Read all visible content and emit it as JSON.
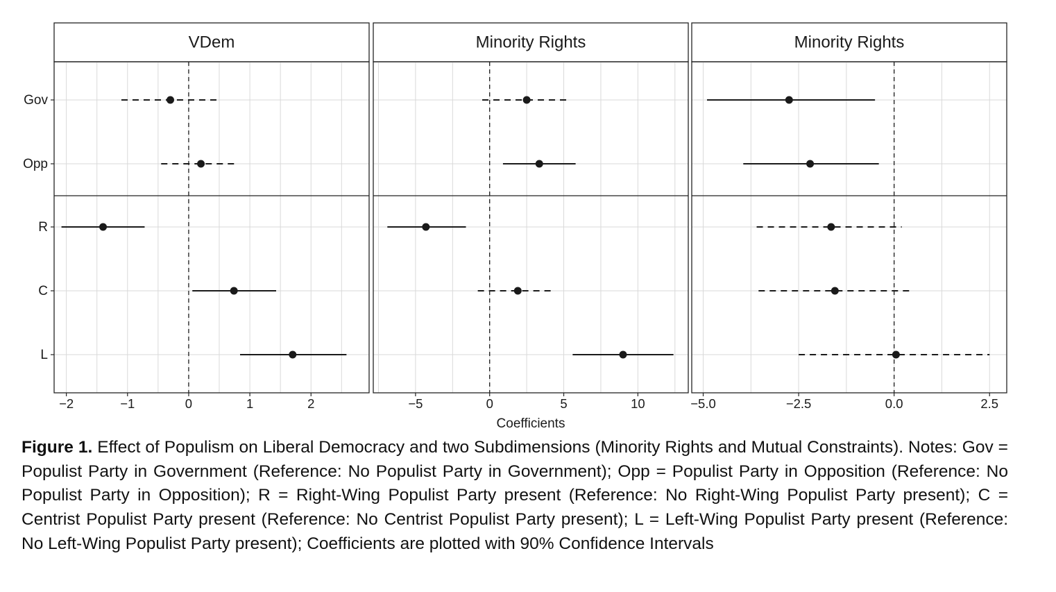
{
  "chart_data": {
    "type": "coefficient-plot",
    "x_axis_label": "Coefficients",
    "rows": [
      "Gov",
      "Opp",
      "R",
      "C",
      "L"
    ],
    "row_groups": [
      [
        "Gov",
        "Opp"
      ],
      [
        "R",
        "C",
        "L"
      ]
    ],
    "reference_line": 0,
    "grid": true,
    "interval_note": "90% confidence intervals; solid line = significant, dashed line = not significant",
    "panels": [
      {
        "title": "VDem",
        "xlim": [
          -2.2,
          2.95
        ],
        "ticks": [
          -2,
          -1,
          0,
          1,
          2
        ],
        "tick_labels": [
          "−2",
          "−1",
          "0",
          "1",
          "2"
        ],
        "estimates": [
          {
            "row": "Gov",
            "estimate": -0.3,
            "lower": -1.1,
            "upper": 0.48,
            "significant": false
          },
          {
            "row": "Opp",
            "estimate": 0.2,
            "lower": -0.45,
            "upper": 0.82,
            "significant": false
          },
          {
            "row": "R",
            "estimate": -1.4,
            "lower": -2.08,
            "upper": -0.72,
            "significant": true
          },
          {
            "row": "C",
            "estimate": 0.74,
            "lower": 0.06,
            "upper": 1.43,
            "significant": true
          },
          {
            "row": "L",
            "estimate": 1.7,
            "lower": 0.84,
            "upper": 2.58,
            "significant": true
          }
        ]
      },
      {
        "title": "Minority Rights",
        "xlim": [
          -7.85,
          13.4
        ],
        "ticks": [
          -5,
          0,
          5,
          10
        ],
        "tick_labels": [
          "−5",
          "0",
          "5",
          "10"
        ],
        "estimates": [
          {
            "row": "Gov",
            "estimate": 2.5,
            "lower": -0.5,
            "upper": 5.3,
            "significant": false
          },
          {
            "row": "Opp",
            "estimate": 3.35,
            "lower": 0.9,
            "upper": 5.8,
            "significant": true
          },
          {
            "row": "R",
            "estimate": -4.3,
            "lower": -6.9,
            "upper": -1.6,
            "significant": true
          },
          {
            "row": "C",
            "estimate": 1.9,
            "lower": -0.8,
            "upper": 4.4,
            "significant": false
          },
          {
            "row": "L",
            "estimate": 9.0,
            "lower": 5.6,
            "upper": 12.4,
            "significant": true
          }
        ]
      },
      {
        "title": "Minority Rights",
        "xlim": [
          -5.3,
          2.95
        ],
        "ticks": [
          -5.0,
          -2.5,
          0.0,
          2.5
        ],
        "tick_labels": [
          "−5.0",
          "−2.5",
          "0.0",
          "2.5"
        ],
        "estimates": [
          {
            "row": "Gov",
            "estimate": -2.75,
            "lower": -4.9,
            "upper": -0.5,
            "significant": true
          },
          {
            "row": "Opp",
            "estimate": -2.2,
            "lower": -3.95,
            "upper": -0.4,
            "significant": true
          },
          {
            "row": "R",
            "estimate": -1.65,
            "lower": -3.6,
            "upper": 0.2,
            "significant": false
          },
          {
            "row": "C",
            "estimate": -1.55,
            "lower": -3.55,
            "upper": 0.45,
            "significant": false
          },
          {
            "row": "L",
            "estimate": 0.05,
            "lower": -2.5,
            "upper": 2.5,
            "significant": false
          }
        ]
      }
    ]
  },
  "caption": {
    "label": "Figure 1.",
    "text": " Effect of Populism on Liberal Democracy and two Subdimensions (Minority Rights and Mutual Constraints). Notes: Gov = Populist Party in Government (Reference: No Populist Party in Government); Opp = Populist Party in Opposition (Reference: No Populist Party in Opposition); R = Right-Wing Populist Party present (Reference: No Right-Wing Populist Party present); C = Centrist Populist Party present (Reference: No Centrist Populist Party present); L = Left-Wing Populist Party present (Reference: No Left-Wing Populist Party present); Coefficients are plotted with 90% Confidence Intervals"
  },
  "colors": {
    "ink": "#1a1a1a",
    "grid": "#d9d9d9",
    "frame": "#222222",
    "background": "#ffffff"
  }
}
